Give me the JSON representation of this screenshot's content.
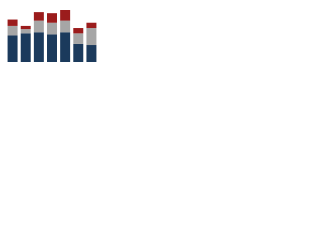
{
  "chart_data": {
    "type": "stacked-bar",
    "series": [
      {
        "color": "#1b3a5c",
        "values": [
          25,
          27,
          28,
          26,
          28,
          17,
          16
        ]
      },
      {
        "color": "#a6a6a6",
        "values": [
          9,
          4,
          11,
          11,
          11,
          10,
          16
        ]
      },
      {
        "color": "#9b1c1c",
        "values": [
          6,
          3,
          8,
          9,
          10,
          5,
          5
        ]
      }
    ]
  }
}
